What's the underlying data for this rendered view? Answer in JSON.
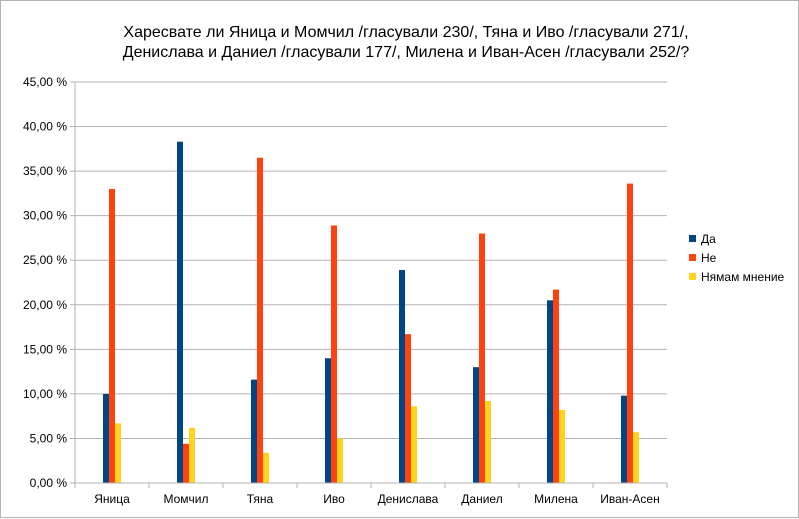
{
  "chart_data": {
    "type": "bar",
    "title_lines": [
      "Харесвате ли Яница и Момчил /гласували 230/, Тяна и Иво /гласували 271/,",
      "Денислава и Даниел /гласували 177/, Милена и Иван-Асен /гласували 252/?"
    ],
    "categories": [
      "Яница",
      "Момчил",
      "Тяна",
      "Иво",
      "Денислава",
      "Даниел",
      "Милена",
      "Иван-Асен"
    ],
    "series": [
      {
        "name": "Да",
        "color": "#004586",
        "values": [
          10.0,
          38.3,
          11.6,
          14.0,
          23.9,
          13.0,
          20.5,
          9.8
        ]
      },
      {
        "name": "Не",
        "color": "#ff420e",
        "values": [
          33.0,
          4.4,
          36.5,
          28.9,
          16.7,
          28.0,
          21.7,
          33.6
        ]
      },
      {
        "name": "Нямам мнение",
        "color": "#ffd320",
        "values": [
          6.7,
          6.2,
          3.4,
          5.0,
          8.6,
          9.2,
          8.2,
          5.7
        ]
      }
    ],
    "ylim": [
      0,
      45
    ],
    "yticks": [
      0,
      5,
      10,
      15,
      20,
      25,
      30,
      35,
      40,
      45
    ],
    "ytick_labels": [
      "0,00 %",
      "5,00 %",
      "10,00 %",
      "15,00 %",
      "20,00 %",
      "25,00 %",
      "30,00 %",
      "35,00 %",
      "40,00 %",
      "45,00 %"
    ],
    "grid": true,
    "legend_position": "right"
  }
}
